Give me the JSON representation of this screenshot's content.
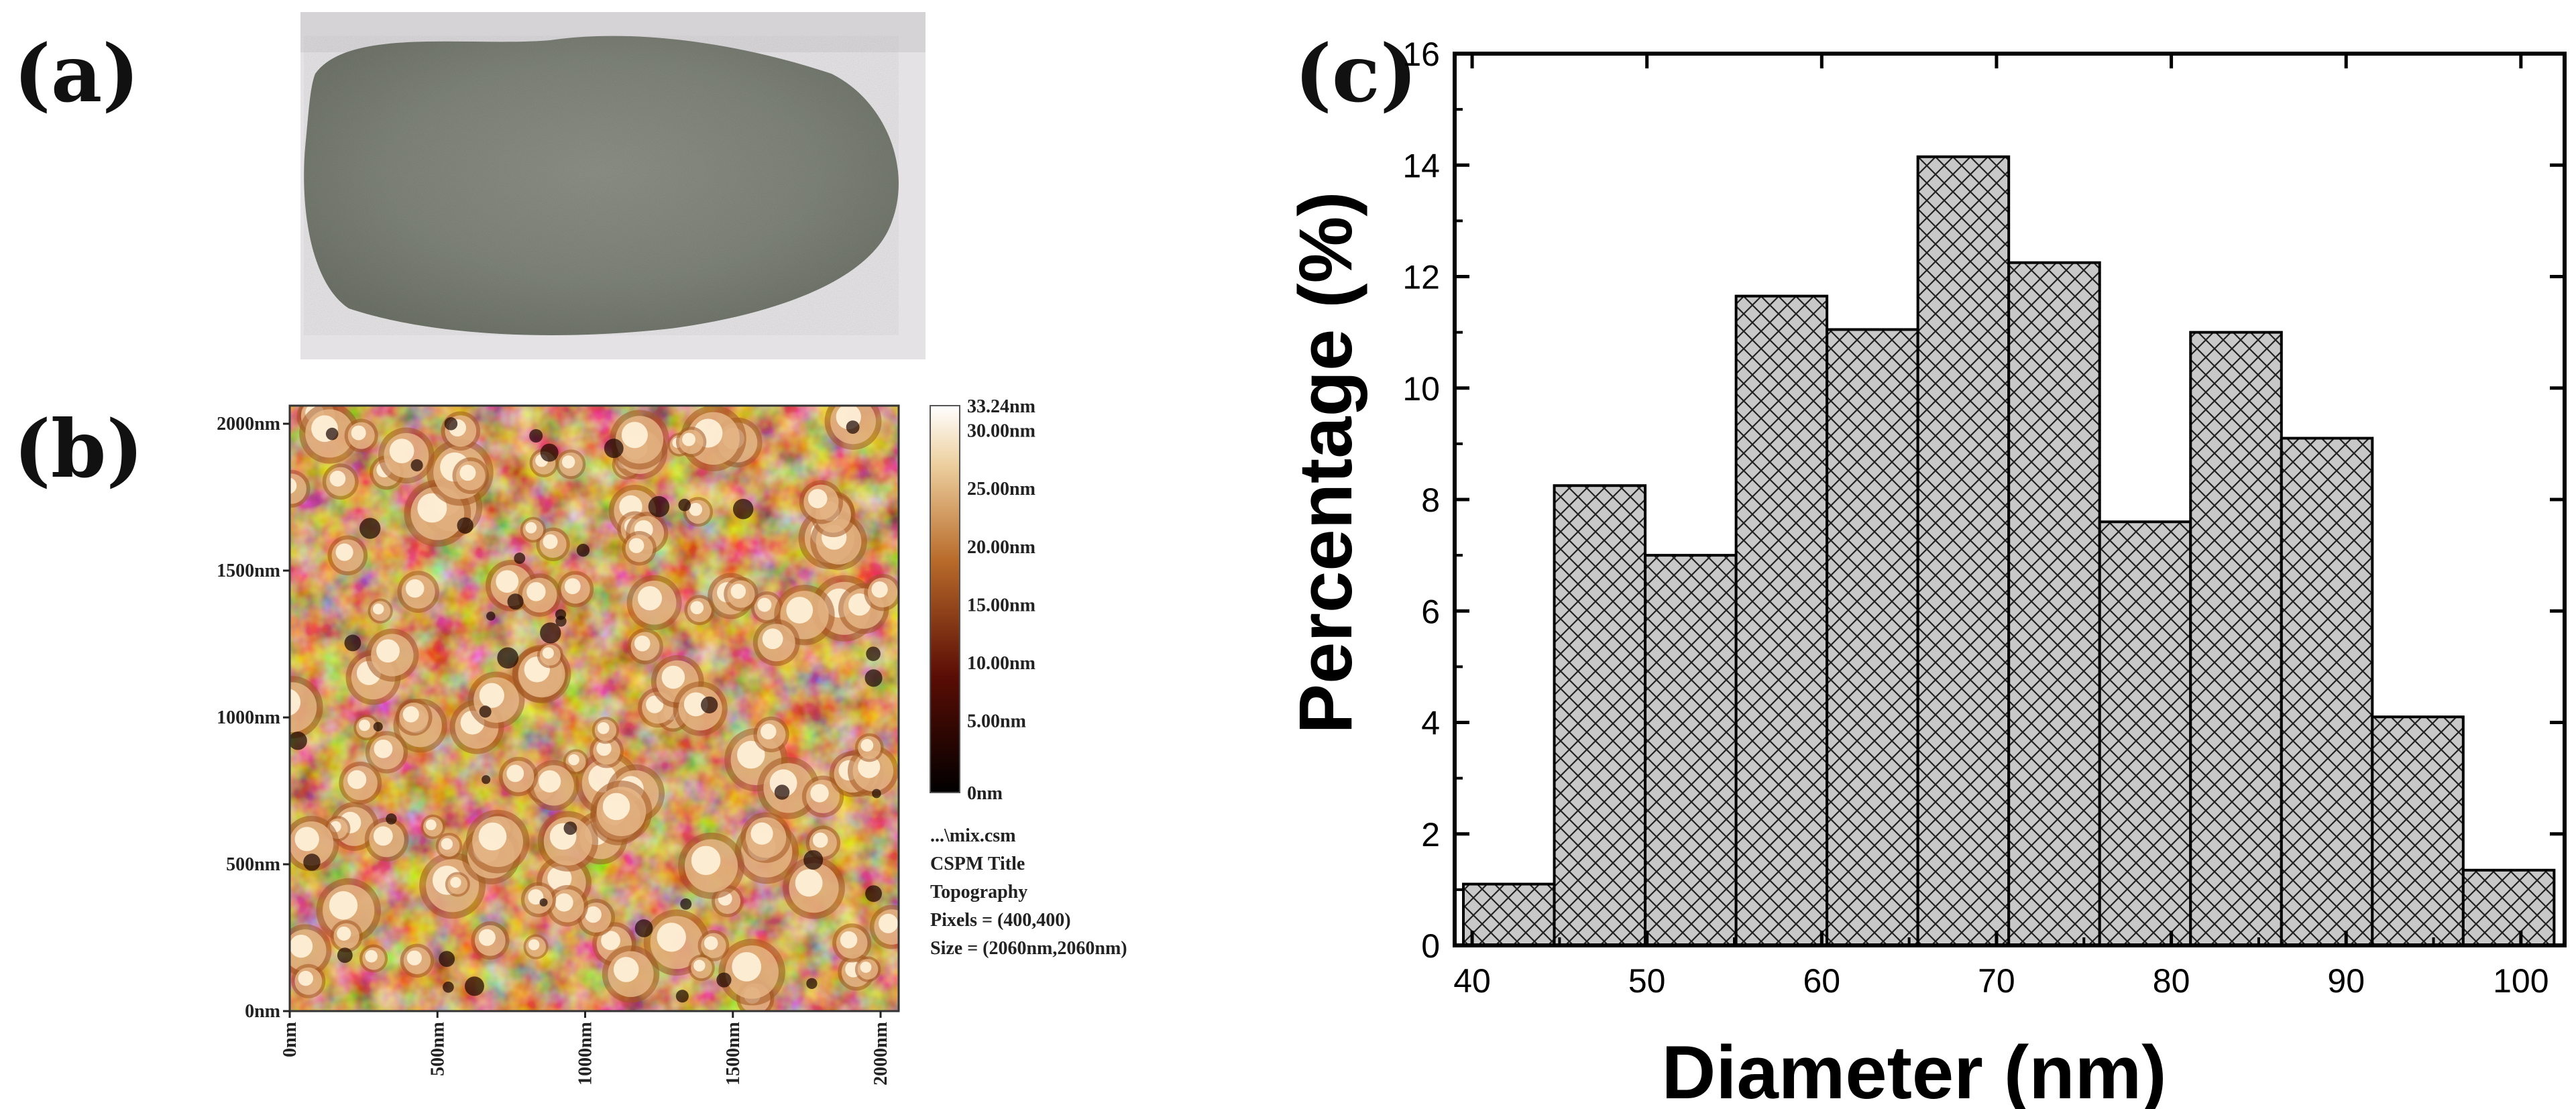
{
  "panel_labels": {
    "a": "(a)",
    "b": "(b)",
    "c": "(c)"
  },
  "afm": {
    "y_ticks": [
      "2000nm",
      "1500nm",
      "1000nm",
      "500nm",
      "0nm"
    ],
    "x_ticks": [
      "0nm",
      "500nm",
      "1000nm",
      "1500nm",
      "2000nm"
    ],
    "colorbar_ticks": [
      "33.24nm",
      "30.00nm",
      "25.00nm",
      "20.00nm",
      "15.00nm",
      "10.00nm",
      "5.00nm",
      "0nm"
    ],
    "info": [
      "...\\mix.csm",
      "CSPM Title",
      "Topography",
      "Pixels = (400,400)",
      "Size = (2060nm,2060nm)"
    ]
  },
  "colors": {
    "bar_fill": "#c8c8c8",
    "bar_hatch": "#222222",
    "powder": "#7f847a",
    "afm_dark": "#1a0400",
    "afm_mid": "#a35520",
    "afm_light": "#fff3dc"
  },
  "chart_data": {
    "type": "bar",
    "xlabel": "Diameter (nm)",
    "ylabel": "Percentage (%)",
    "xlim": [
      39,
      102.5
    ],
    "ylim": [
      0,
      16
    ],
    "bin_edges": [
      39.5,
      44.7,
      49.9,
      55.1,
      60.3,
      65.5,
      70.7,
      75.9,
      81.1,
      86.3,
      91.5,
      96.7,
      101.9
    ],
    "values": [
      1.1,
      8.25,
      7.0,
      11.65,
      11.05,
      14.15,
      12.25,
      7.6,
      11.0,
      9.1,
      4.1,
      1.35
    ],
    "x_ticks": [
      40,
      50,
      60,
      70,
      80,
      90,
      100
    ],
    "y_ticks": [
      0,
      2,
      4,
      6,
      8,
      10,
      12,
      14,
      16
    ],
    "grid": false
  }
}
